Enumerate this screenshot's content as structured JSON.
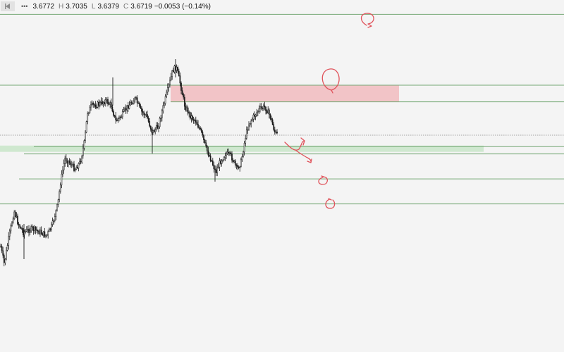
{
  "legend": {
    "menu_icon": "collapse-arrow-icon",
    "more_icon": "ellipsis-icon",
    "more_label": "•••",
    "open_value": "3.6772",
    "high_key": "H",
    "high_value": "3.7035",
    "low_key": "L",
    "low_value": "3.6379",
    "close_key": "C",
    "close_value": "3.6719",
    "change": "−0.0053 (−0.14%)"
  },
  "colors": {
    "background": "#f4f4f4",
    "candle": "#1a1a1a",
    "level_line": "#76a876",
    "supply_zone": "#f2c4c7",
    "demand_zone": "#cfe8cf",
    "annotation": "#e0535b",
    "price_line": "#888888"
  },
  "chart_data": {
    "type": "candlestick",
    "instrument_interval": "",
    "last_close": 3.6719,
    "session_high": 3.7035,
    "session_low": 3.6379,
    "price_levels": [
      {
        "name": "level-top",
        "price": 3.78
      },
      {
        "name": "level-upper",
        "price": 3.712
      },
      {
        "name": "level-supply-bottom",
        "price": 3.696
      },
      {
        "name": "level-demand-top",
        "price": 3.653
      },
      {
        "name": "level-demand-bottom",
        "price": 3.646
      },
      {
        "name": "level-lower",
        "price": 3.622
      },
      {
        "name": "level-bottom",
        "price": 3.598
      }
    ],
    "zones": [
      {
        "name": "supply-zone",
        "kind": "supply",
        "top": 3.712,
        "bottom": 3.696
      },
      {
        "name": "demand-zone",
        "kind": "demand",
        "top": 3.654,
        "bottom": 3.648
      }
    ],
    "current_price_line": 3.664,
    "annotations": [
      {
        "name": "circle-arrow-top",
        "shape": "circle-arrow"
      },
      {
        "name": "circle-supply-zone",
        "shape": "circle"
      },
      {
        "name": "projection-path",
        "shape": "arrow-path"
      },
      {
        "name": "circle-arrow-mid",
        "shape": "circle-arrow"
      },
      {
        "name": "circle-arrow-low",
        "shape": "circle-arrow"
      }
    ],
    "candles": []
  }
}
